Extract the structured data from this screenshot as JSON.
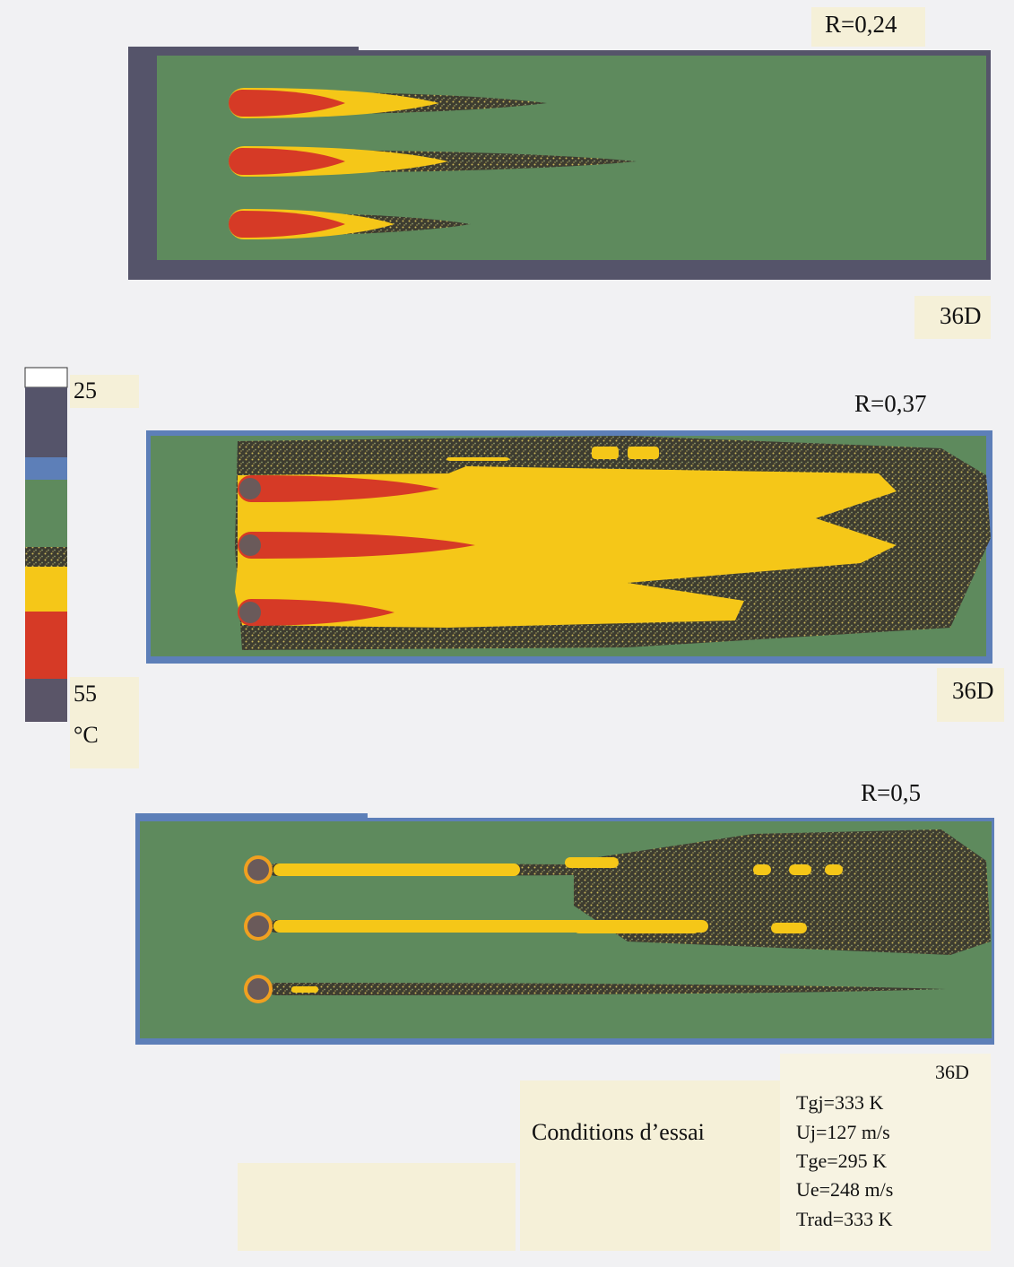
{
  "panels": [
    {
      "label": "R=0,24",
      "length": "36D"
    },
    {
      "label": "R=0,37",
      "length": "36D"
    },
    {
      "label": "R=0,5",
      "length": "36D"
    }
  ],
  "colorbar": {
    "min_label": "25",
    "max_label": "55",
    "unit": "°C"
  },
  "conditions": {
    "title": "Conditions d’essai",
    "items": [
      "Tgj=333 K",
      "Uj=127 m/s",
      "Tge=295 K",
      "Ue=248 m/s",
      "Trad=333 K"
    ]
  }
}
